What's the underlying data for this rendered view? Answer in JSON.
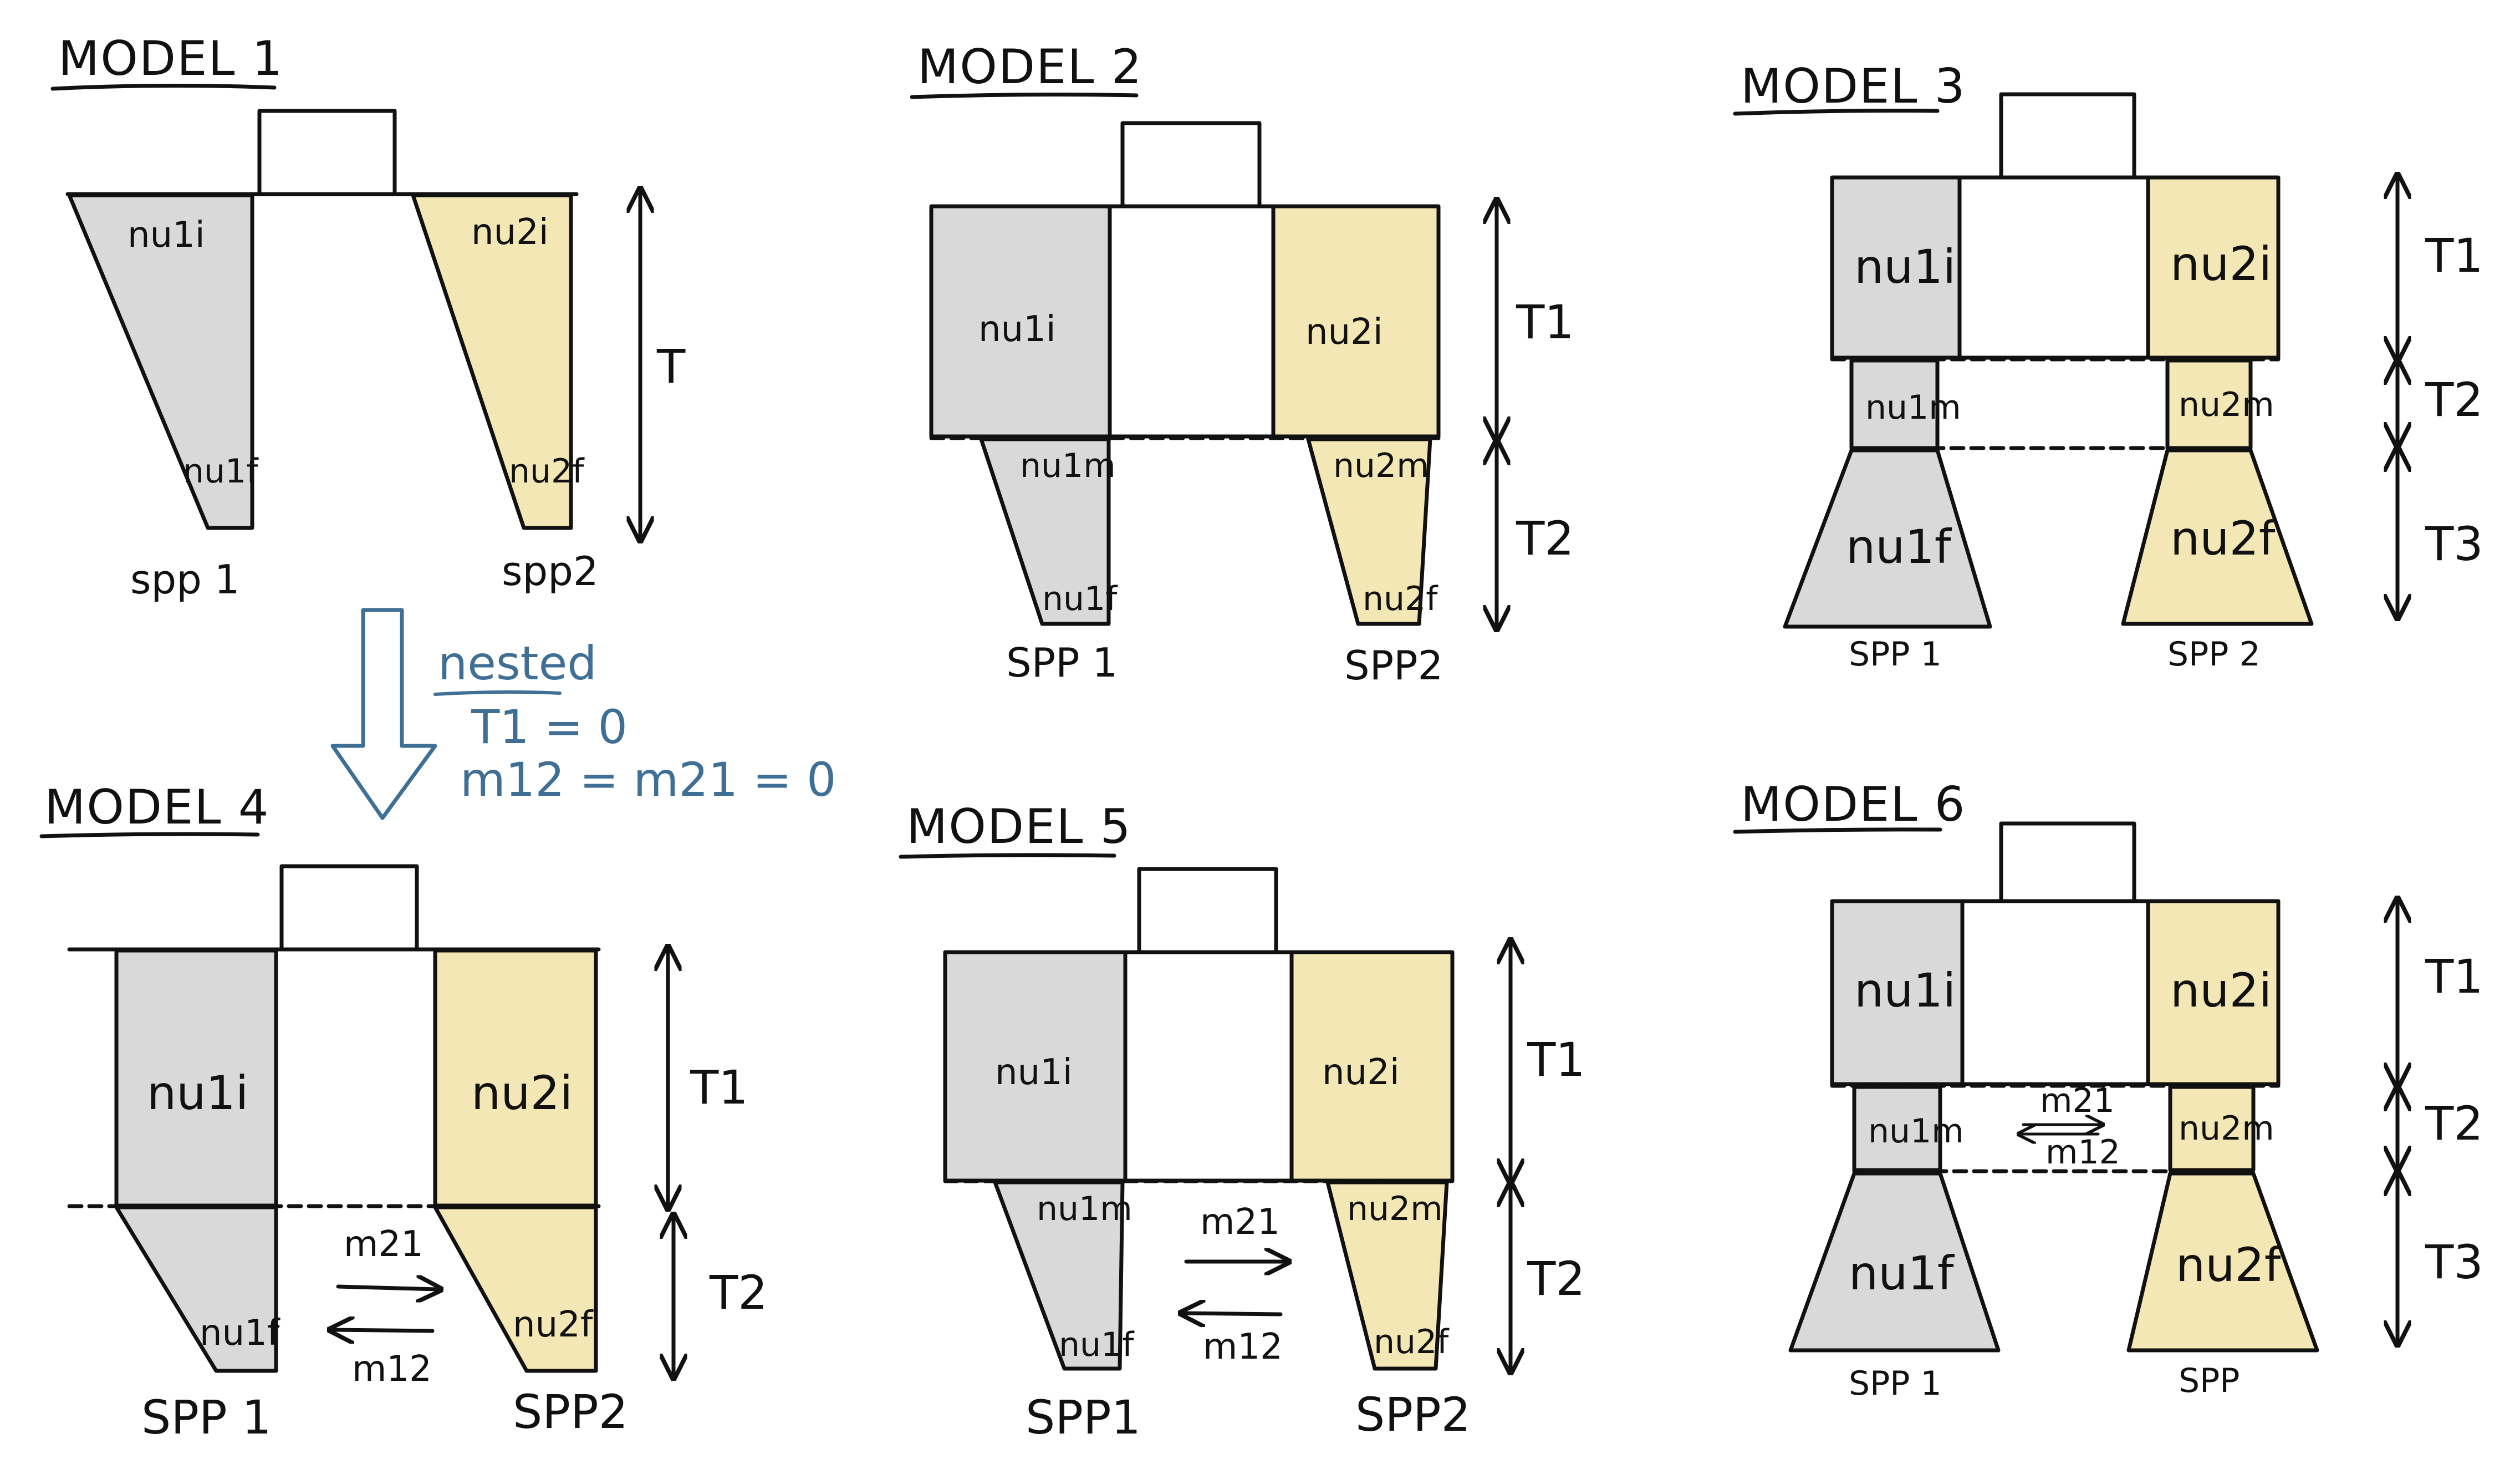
{
  "colors": {
    "ink": "#111111",
    "gray_fill": "#d9d9d9",
    "yellow_fill": "#f3e8b5",
    "annotation_blue": "#3f6f95"
  },
  "models": {
    "m1": {
      "title": "MODEL 1",
      "pop1_initial": "nu1i",
      "pop2_initial": "nu2i",
      "pop1_final": "nu1f",
      "pop2_final": "nu2f",
      "spp1": "spp 1",
      "spp2": "spp2",
      "T": "T"
    },
    "m2": {
      "title": "MODEL 2",
      "pop1_initial": "nu1i",
      "pop2_initial": "nu2i",
      "pop1_mid": "nu1m",
      "pop2_mid": "nu2m",
      "pop1_final": "nu1f",
      "pop2_final": "nu2f",
      "spp1": "SPP 1",
      "spp2": "SPP2",
      "T1": "T1",
      "T2": "T2"
    },
    "m3": {
      "title": "MODEL 3",
      "pop1_initial": "nu1i",
      "pop2_initial": "nu2i",
      "pop1_mid": "nu1m",
      "pop2_mid": "nu2m",
      "pop1_final": "nu1f",
      "pop2_final": "nu2f",
      "spp1": "SPP 1",
      "spp2": "SPP 2",
      "T1": "T1",
      "T2": "T2",
      "T3": "T3"
    },
    "m4": {
      "title": "MODEL 4",
      "pop1_initial": "nu1i",
      "pop2_initial": "nu2i",
      "pop1_final": "nu1f",
      "pop2_final": "nu2f",
      "m21": "m21",
      "m12": "m12",
      "spp1": "SPP 1",
      "spp2": "SPP2",
      "T1": "T1",
      "T2": "T2"
    },
    "m5": {
      "title": "MODEL 5",
      "pop1_initial": "nu1i",
      "pop2_initial": "nu2i",
      "pop1_mid": "nu1m",
      "pop2_mid": "nu2m",
      "pop1_final": "nu1f",
      "pop2_final": "nu2f",
      "m21": "m21",
      "m12": "m12",
      "spp1": "SPP1",
      "spp2": "SPP2",
      "T1": "T1",
      "T2": "T2"
    },
    "m6": {
      "title": "MODEL 6",
      "pop1_initial": "nu1i",
      "pop2_initial": "nu2i",
      "pop1_mid": "nu1m",
      "pop2_mid": "nu2m",
      "pop1_final": "nu1f",
      "pop2_final": "nu2f",
      "m21": "m21",
      "m12": "m12",
      "spp1": "SPP 1",
      "spp2": "SPP",
      "T1": "T1",
      "T2": "T2",
      "T3": "T3"
    }
  },
  "annotation": {
    "label": "nested",
    "eq1": "T1 = 0",
    "eq2": "m12 = m21 = 0"
  }
}
